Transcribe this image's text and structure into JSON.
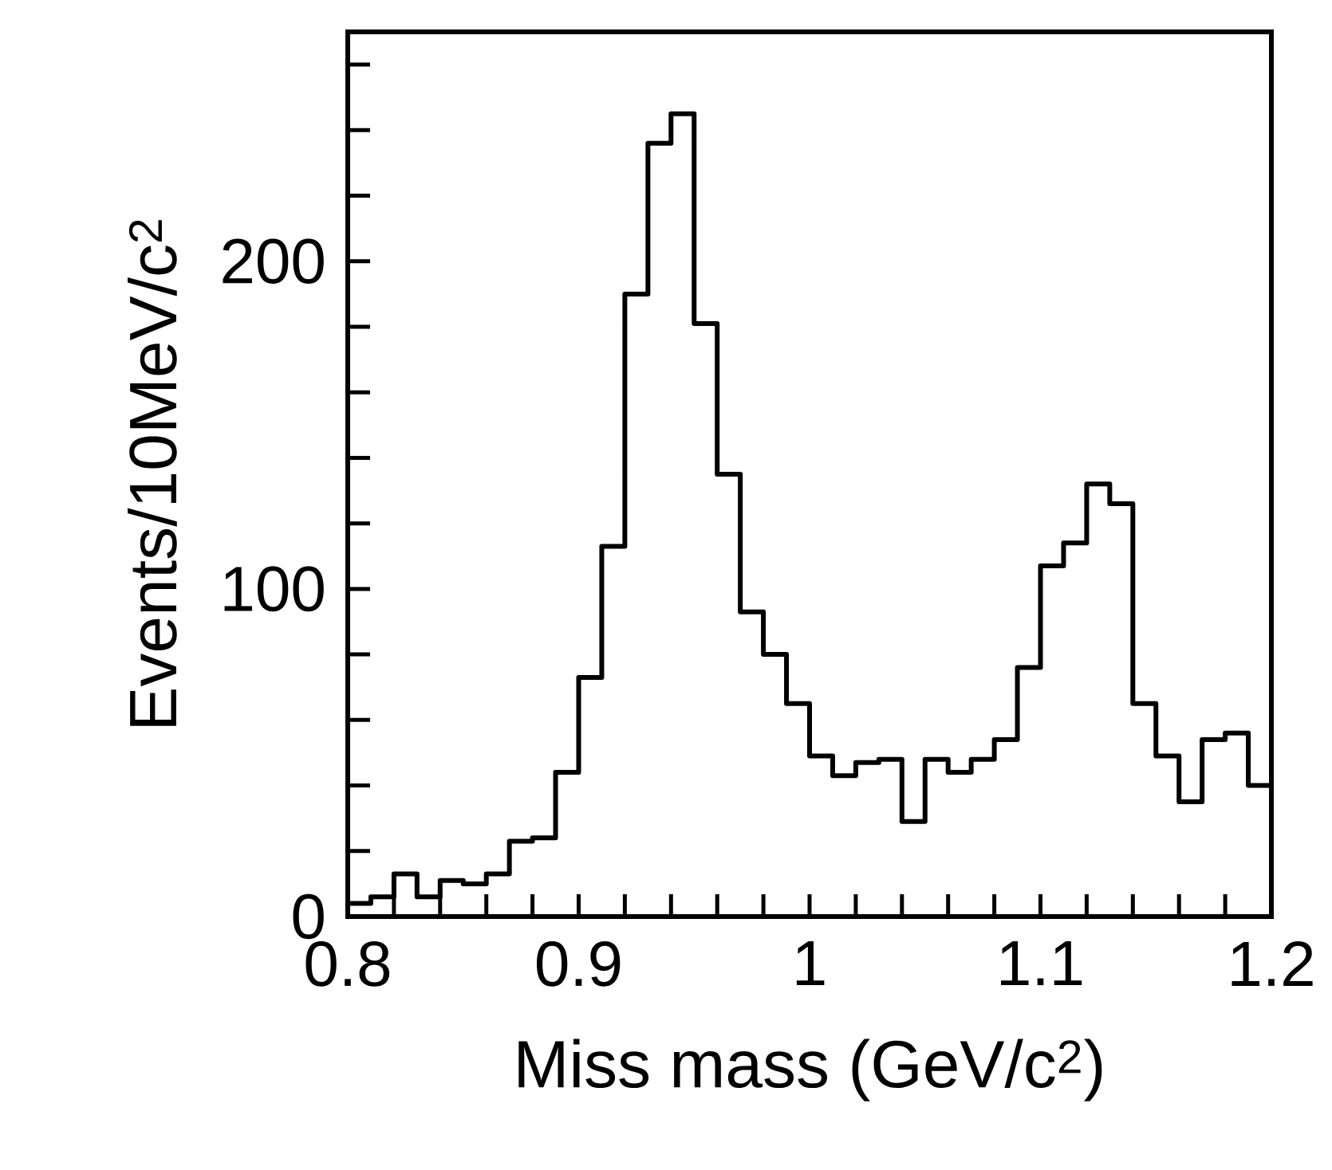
{
  "chart_data": {
    "type": "histogram",
    "xlabel": "Miss mass (GeV/c$^{2}$)",
    "ylabel": "Events/10MeV/c$^{2}$",
    "bins": [
      0.8,
      0.81,
      0.82,
      0.83,
      0.84,
      0.85,
      0.86,
      0.87,
      0.88,
      0.89,
      0.9,
      0.91,
      0.92,
      0.93,
      0.94,
      0.95,
      0.96,
      0.97,
      0.98,
      0.99,
      1.0,
      1.01,
      1.02,
      1.03,
      1.04,
      1.05,
      1.06,
      1.07,
      1.08,
      1.09,
      1.1,
      1.11,
      1.12,
      1.13,
      1.14,
      1.15,
      1.16,
      1.17,
      1.18,
      1.19,
      1.2
    ],
    "values": [
      4,
      6,
      13,
      6,
      11,
      10,
      13,
      23,
      24,
      44,
      73,
      113,
      190,
      236,
      245,
      181,
      135,
      93,
      80,
      65,
      49,
      43,
      47,
      48,
      29,
      48,
      44,
      48,
      54,
      76,
      107,
      114,
      132,
      126,
      65,
      49,
      35,
      54,
      56,
      40
    ],
    "color": "#000000",
    "xlim": [
      0.8,
      1.2
    ],
    "ylim": [
      0,
      270
    ],
    "xticks": [
      {
        "value": 0.8,
        "label": "0.8"
      },
      {
        "value": 0.82,
        "label": null
      },
      {
        "value": 0.84,
        "label": null
      },
      {
        "value": 0.86,
        "label": null
      },
      {
        "value": 0.88,
        "label": null
      },
      {
        "value": 0.9,
        "label": "0.9"
      },
      {
        "value": 0.92,
        "label": null
      },
      {
        "value": 0.94,
        "label": null
      },
      {
        "value": 0.96,
        "label": null
      },
      {
        "value": 0.98,
        "label": null
      },
      {
        "value": 1.0,
        "label": "1"
      },
      {
        "value": 1.02,
        "label": null
      },
      {
        "value": 1.04,
        "label": null
      },
      {
        "value": 1.06,
        "label": null
      },
      {
        "value": 1.08,
        "label": null
      },
      {
        "value": 1.1,
        "label": "1.1"
      },
      {
        "value": 1.12,
        "label": null
      },
      {
        "value": 1.14,
        "label": null
      },
      {
        "value": 1.16,
        "label": null
      },
      {
        "value": 1.18,
        "label": null
      },
      {
        "value": 1.2,
        "label": "1.2"
      }
    ],
    "yticks": [
      0,
      {
        "value": 20,
        "label": null
      },
      {
        "value": 40,
        "label": null
      },
      {
        "value": 60,
        "label": null
      },
      {
        "value": 80,
        "label": null
      },
      100,
      {
        "value": 120,
        "label": null
      },
      {
        "value": 140,
        "label": null
      },
      {
        "value": 160,
        "label": null
      },
      {
        "value": 180,
        "label": null
      },
      200,
      {
        "value": 220,
        "label": null
      },
      {
        "value": 240,
        "label": null
      },
      {
        "value": 260,
        "label": null
      }
    ],
    "grid": false
  }
}
